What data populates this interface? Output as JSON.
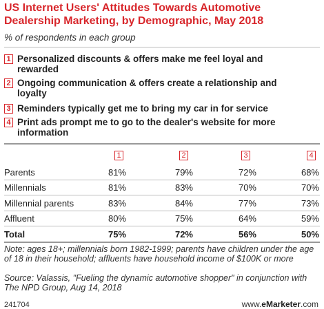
{
  "header": {
    "title": "US Internet Users' Attitudes Towards Automotive Dealership Marketing, by Demographic, May 2018",
    "subtitle": "% of respondents in each group"
  },
  "legend": [
    {
      "key": "1",
      "label": "Personalized discounts & offers make me feel loyal and rewarded"
    },
    {
      "key": "2",
      "label": "Ongoing communication & offers create a relationship and loyalty"
    },
    {
      "key": "3",
      "label": "Reminders typically get me to bring my car in for service"
    },
    {
      "key": "4",
      "label": "Print ads prompt me to go to the dealer's website for more information"
    }
  ],
  "table": {
    "columns": [
      "1",
      "2",
      "3",
      "4"
    ],
    "rows": [
      [
        "Parents",
        "81%",
        "79%",
        "72%",
        "68%"
      ],
      [
        "Millennials",
        "81%",
        "83%",
        "70%",
        "70%"
      ],
      [
        "Millennial parents",
        "83%",
        "84%",
        "77%",
        "73%"
      ],
      [
        "Affluent",
        "80%",
        "75%",
        "64%",
        "59%"
      ],
      [
        "Total",
        "75%",
        "72%",
        "56%",
        "50%"
      ]
    ]
  },
  "notes": {
    "note": "Note: ages 18+; millennials born 1982-1999; parents have children under the age of 18 in their household; affluents have household income of $100K or more",
    "source": "Source: Valassis, \"Fueling the dynamic automotive shopper\" in conjunction with The NPD Group, Aug 14, 2018"
  },
  "footer": {
    "id": "241704",
    "prefix": "www.",
    "brand": "eMarketer",
    ".suffix": ".com"
  }
}
